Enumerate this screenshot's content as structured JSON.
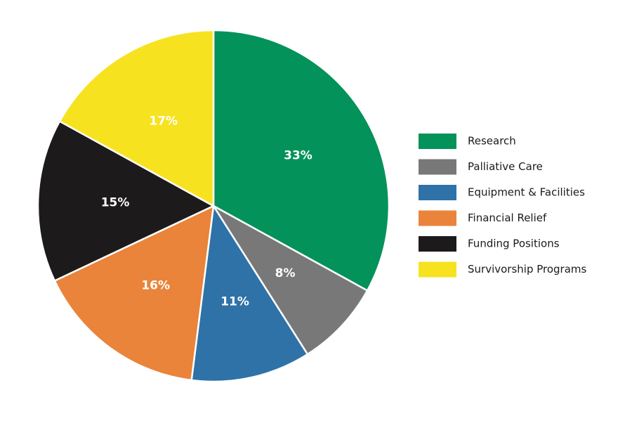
{
  "chart_data": {
    "type": "pie",
    "categories": [
      "Research",
      "Palliative Care",
      "Equipment & Facilities",
      "Financial Relief",
      "Funding Positions",
      "Survivorship Programs"
    ],
    "values": [
      33,
      8,
      11,
      16,
      15,
      17
    ],
    "value_labels": [
      "33%",
      "8%",
      "11%",
      "16%",
      "15%",
      "17%"
    ],
    "colors": [
      "#03925a",
      "#787878",
      "#2e72a8",
      "#e9843a",
      "#1c1a1b",
      "#f7e220"
    ],
    "legend": "right"
  }
}
